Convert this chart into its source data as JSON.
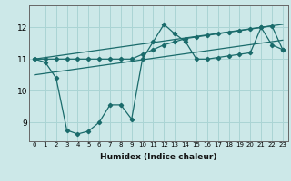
{
  "xlabel": "Humidex (Indice chaleur)",
  "bg_color": "#cce8e8",
  "grid_color": "#aad4d4",
  "line_color": "#1a6b6b",
  "xlim": [
    -0.5,
    23.5
  ],
  "ylim": [
    8.4,
    12.7
  ],
  "xticks": [
    0,
    1,
    2,
    3,
    4,
    5,
    6,
    7,
    8,
    9,
    10,
    11,
    12,
    13,
    14,
    15,
    16,
    17,
    18,
    19,
    20,
    21,
    22,
    23
  ],
  "yticks": [
    9,
    10,
    11,
    12
  ],
  "line1_x": [
    0,
    1,
    2,
    3,
    4,
    5,
    6,
    7,
    8,
    9,
    10,
    11,
    12,
    13,
    14,
    15,
    16,
    17,
    18,
    19,
    20,
    21,
    22,
    23
  ],
  "line1_y": [
    11.0,
    10.9,
    10.4,
    8.75,
    8.63,
    8.72,
    9.0,
    9.55,
    9.55,
    9.1,
    11.0,
    11.55,
    12.1,
    11.8,
    11.55,
    11.0,
    11.0,
    11.05,
    11.1,
    11.15,
    11.2,
    12.0,
    11.45,
    11.3
  ],
  "line2_x": [
    0,
    23
  ],
  "line2_y": [
    11.0,
    12.1
  ],
  "line3_x": [
    0,
    23
  ],
  "line3_y": [
    10.5,
    11.6
  ],
  "line4_x": [
    0,
    1,
    2,
    3,
    4,
    5,
    6,
    7,
    8,
    9,
    10,
    11,
    12,
    13,
    14,
    15,
    16,
    17,
    18,
    19,
    20,
    21,
    22,
    23
  ],
  "line4_y": [
    11.0,
    11.0,
    11.0,
    11.0,
    11.0,
    11.0,
    11.0,
    11.0,
    11.0,
    11.0,
    11.15,
    11.3,
    11.45,
    11.55,
    11.65,
    11.7,
    11.75,
    11.8,
    11.85,
    11.9,
    11.95,
    12.0,
    12.05,
    11.3
  ]
}
